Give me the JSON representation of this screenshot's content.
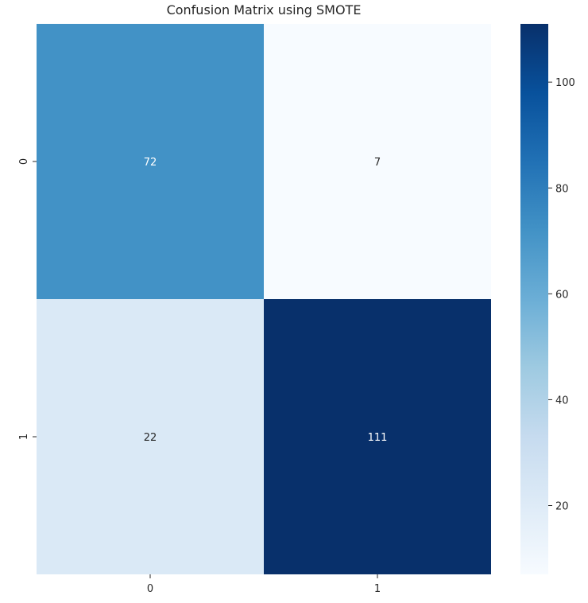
{
  "chart_data": {
    "type": "heatmap",
    "title": "Confusion Matrix using SMOTE",
    "xlabel": "",
    "ylabel": "",
    "x_tick_labels": [
      "0",
      "1"
    ],
    "y_tick_labels": [
      "0",
      "1"
    ],
    "matrix": [
      [
        72,
        7
      ],
      [
        22,
        111
      ]
    ],
    "colorbar": {
      "min": 7,
      "max": 111,
      "ticks": [
        20,
        40,
        60,
        80,
        100
      ],
      "colormap": "Blues"
    },
    "colors": {
      "low": "#f7fbff",
      "high": "#08306b"
    }
  }
}
